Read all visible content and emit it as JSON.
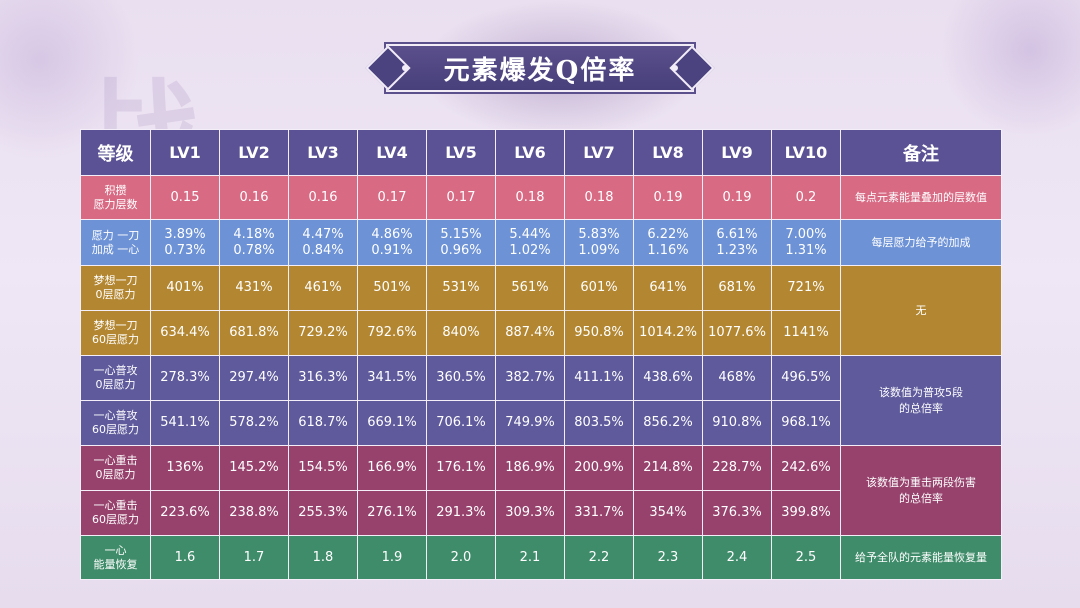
{
  "title": "元素爆发Q倍率",
  "background_char": "战",
  "header": {
    "level": "等级",
    "levels": [
      "LV1",
      "LV2",
      "LV3",
      "LV4",
      "LV5",
      "LV6",
      "LV7",
      "LV8",
      "LV9",
      "LV10"
    ],
    "notes": "备注"
  },
  "rows": [
    {
      "label_l1": "积攒",
      "label_l2": "愿力层数",
      "values": [
        "0.15",
        "0.16",
        "0.16",
        "0.17",
        "0.17",
        "0.18",
        "0.18",
        "0.19",
        "0.19",
        "0.2"
      ],
      "note": "每点元素能量叠加的层数值"
    },
    {
      "label_l1": "愿力 一刀",
      "label_l2": "加成 一心",
      "values": [
        [
          "3.89%",
          "0.73%"
        ],
        [
          "4.18%",
          "0.78%"
        ],
        [
          "4.47%",
          "0.84%"
        ],
        [
          "4.86%",
          "0.91%"
        ],
        [
          "5.15%",
          "0.96%"
        ],
        [
          "5.44%",
          "1.02%"
        ],
        [
          "5.83%",
          "1.09%"
        ],
        [
          "6.22%",
          "1.16%"
        ],
        [
          "6.61%",
          "1.23%"
        ],
        [
          "7.00%",
          "1.31%"
        ]
      ],
      "note": "每层愿力给予的加成"
    },
    {
      "label_l1": "梦想一刀",
      "label_l2": "0层愿力",
      "values": [
        "401%",
        "431%",
        "461%",
        "501%",
        "531%",
        "561%",
        "601%",
        "641%",
        "681%",
        "721%"
      ]
    },
    {
      "label_l1": "梦想一刀",
      "label_l2": "60层愿力",
      "values": [
        "634.4%",
        "681.8%",
        "729.2%",
        "792.6%",
        "840%",
        "887.4%",
        "950.8%",
        "1014.2%",
        "1077.6%",
        "1141%"
      ]
    },
    {
      "label_l1": "一心普攻",
      "label_l2": "0层愿力",
      "values": [
        "278.3%",
        "297.4%",
        "316.3%",
        "341.5%",
        "360.5%",
        "382.7%",
        "411.1%",
        "438.6%",
        "468%",
        "496.5%"
      ]
    },
    {
      "label_l1": "一心普攻",
      "label_l2": "60层愿力",
      "values": [
        "541.1%",
        "578.2%",
        "618.7%",
        "669.1%",
        "706.1%",
        "749.9%",
        "803.5%",
        "856.2%",
        "910.8%",
        "968.1%"
      ]
    },
    {
      "label_l1": "一心重击",
      "label_l2": "0层愿力",
      "values": [
        "136%",
        "145.2%",
        "154.5%",
        "166.9%",
        "176.1%",
        "186.9%",
        "200.9%",
        "214.8%",
        "228.7%",
        "242.6%"
      ]
    },
    {
      "label_l1": "一心重击",
      "label_l2": "60层愿力",
      "values": [
        "223.6%",
        "238.8%",
        "255.3%",
        "276.1%",
        "291.3%",
        "309.3%",
        "331.7%",
        "354%",
        "376.3%",
        "399.8%"
      ]
    },
    {
      "label_l1": "一心",
      "label_l2": "能量恢复",
      "values": [
        "1.6",
        "1.7",
        "1.8",
        "1.9",
        "2.0",
        "2.1",
        "2.2",
        "2.3",
        "2.4",
        "2.5"
      ],
      "note": "给予全队的元素能量恢复量"
    }
  ],
  "merged_notes": {
    "dream_slash": "无",
    "normal_attack_l1": "该数值为普攻5段",
    "normal_attack_l2": "的总倍率",
    "charged_attack_l1": "该数值为重击两段伤害",
    "charged_attack_l2": "的总倍率"
  },
  "colors": {
    "header": "#5a5294",
    "pink": "#d86a84",
    "blue": "#6d92d6",
    "gold": "#b38732",
    "indigo": "#5e5a9c",
    "plum": "#96426c",
    "green": "#3f8c6a",
    "background": "#ebe2f1"
  }
}
